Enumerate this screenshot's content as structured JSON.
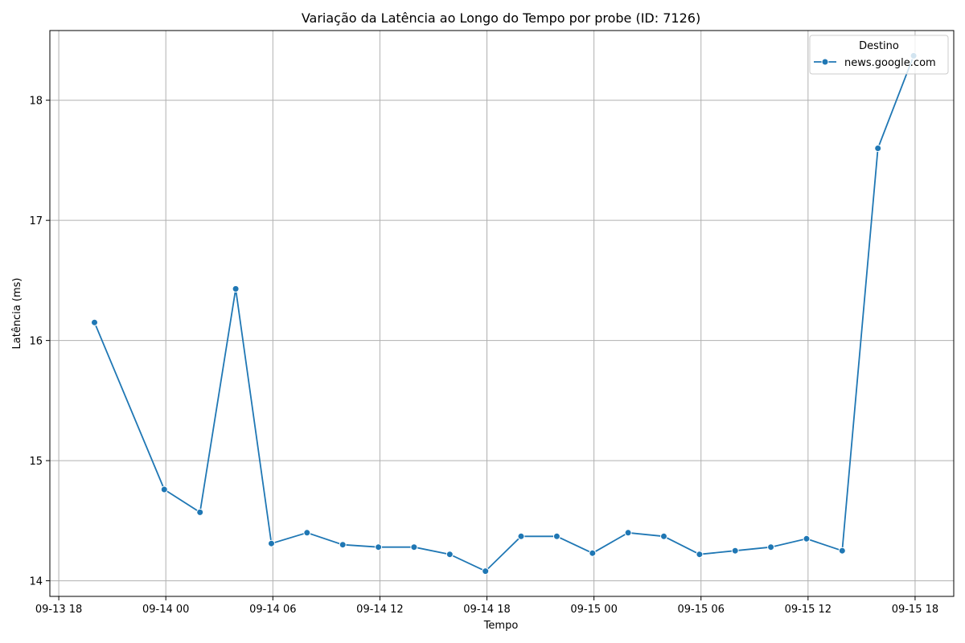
{
  "chart_data": {
    "type": "line",
    "title": "Variação da Latência ao Longo do Tempo por probe (ID: 7126)",
    "xlabel": "Tempo",
    "ylabel": "Latência (ms)",
    "x_ticks": [
      {
        "label": "09-13 18",
        "hours": 0
      },
      {
        "label": "09-14 00",
        "hours": 6
      },
      {
        "label": "09-14 06",
        "hours": 12
      },
      {
        "label": "09-14 12",
        "hours": 18
      },
      {
        "label": "09-14 18",
        "hours": 24
      },
      {
        "label": "09-15 00",
        "hours": 30
      },
      {
        "label": "09-15 06",
        "hours": 36
      },
      {
        "label": "09-15 12",
        "hours": 42
      },
      {
        "label": "09-15 18",
        "hours": 48
      }
    ],
    "y_ticks": [
      14,
      15,
      16,
      17,
      18
    ],
    "xlim": [
      "09-13 17:30",
      "09-15 20:10"
    ],
    "ylim": [
      13.87,
      18.58
    ],
    "grid": true,
    "legend": {
      "title": "Destino",
      "placement": "top-right"
    },
    "series": [
      {
        "name": "news.google.com",
        "color": "#1f77b4",
        "x": [
          "09-13 20:00",
          "09-13 23:55",
          "09-14 01:55",
          "09-14 03:55",
          "09-14 05:55",
          "09-14 07:55",
          "09-14 09:55",
          "09-14 11:55",
          "09-14 13:55",
          "09-14 15:55",
          "09-14 17:55",
          "09-14 19:55",
          "09-14 21:55",
          "09-14 23:55",
          "09-15 01:55",
          "09-15 03:55",
          "09-15 05:55",
          "09-15 07:55",
          "09-15 09:55",
          "09-15 11:55",
          "09-15 13:55",
          "09-15 15:55",
          "09-15 17:55"
        ],
        "values": [
          16.15,
          14.76,
          14.57,
          16.43,
          14.31,
          14.4,
          14.3,
          14.28,
          14.28,
          14.22,
          14.08,
          14.37,
          14.37,
          14.23,
          14.4,
          14.37,
          14.22,
          14.25,
          14.28,
          14.35,
          14.25,
          17.6,
          18.37
        ]
      }
    ]
  }
}
